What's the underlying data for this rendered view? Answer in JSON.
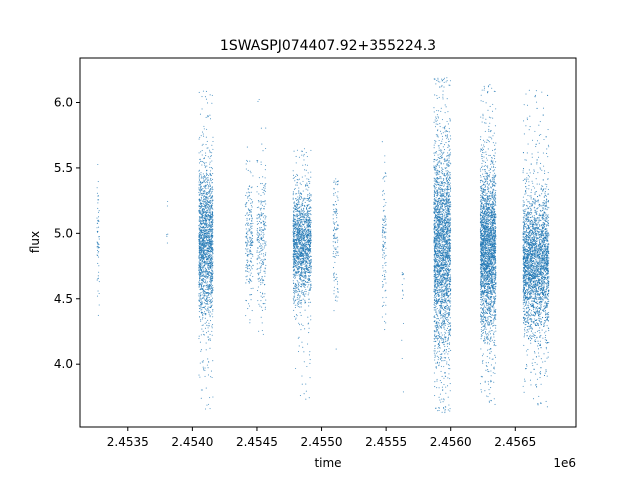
{
  "chart_data": {
    "type": "scatter",
    "title": "1SWASPJ074407.92+355224.3",
    "xlabel": "time",
    "ylabel": "flux",
    "x_offset_label": "1e6",
    "xlim": [
      2453130,
      2456970
    ],
    "ylim": [
      3.52,
      6.34
    ],
    "x_ticks": [
      2453500,
      2454000,
      2454500,
      2455000,
      2455500,
      2456000,
      2456500
    ],
    "x_tick_labels": [
      "2.4535",
      "2.4540",
      "2.4545",
      "2.4550",
      "2.4555",
      "2.4560",
      "2.4565"
    ],
    "y_ticks": [
      4.0,
      4.5,
      5.0,
      5.5,
      6.0
    ],
    "y_tick_labels": [
      "4.0",
      "4.5",
      "5.0",
      "5.5",
      "6.0"
    ],
    "grid": false,
    "legend": "none",
    "marker_color": "#1f77b4",
    "clusters": [
      {
        "x_start": 2453260,
        "x_end": 2453280,
        "center": 4.95,
        "spread": 0.22,
        "ymin": 4.35,
        "ymax": 5.58,
        "n": 60
      },
      {
        "x_start": 2453800,
        "x_end": 2453810,
        "center": 4.95,
        "spread": 0.3,
        "ymin": 4.6,
        "ymax": 5.4,
        "n": 6
      },
      {
        "x_start": 2454050,
        "x_end": 2454160,
        "center": 4.92,
        "spread": 0.28,
        "ymin": 3.65,
        "ymax": 6.12,
        "n": 1800
      },
      {
        "x_start": 2454410,
        "x_end": 2454470,
        "center": 4.95,
        "spread": 0.22,
        "ymin": 4.3,
        "ymax": 5.7,
        "n": 220
      },
      {
        "x_start": 2454500,
        "x_end": 2454570,
        "center": 4.92,
        "spread": 0.25,
        "ymin": 4.2,
        "ymax": 6.05,
        "n": 260
      },
      {
        "x_start": 2454780,
        "x_end": 2454920,
        "center": 4.92,
        "spread": 0.2,
        "ymin": 3.7,
        "ymax": 5.65,
        "n": 1600
      },
      {
        "x_start": 2455090,
        "x_end": 2455130,
        "center": 4.95,
        "spread": 0.25,
        "ymin": 4.1,
        "ymax": 5.42,
        "n": 120
      },
      {
        "x_start": 2455470,
        "x_end": 2455500,
        "center": 4.9,
        "spread": 0.28,
        "ymin": 3.9,
        "ymax": 5.72,
        "n": 110
      },
      {
        "x_start": 2455620,
        "x_end": 2455640,
        "center": 4.6,
        "spread": 0.3,
        "ymin": 3.75,
        "ymax": 4.7,
        "n": 15
      },
      {
        "x_start": 2455870,
        "x_end": 2456000,
        "center": 4.9,
        "spread": 0.38,
        "ymin": 3.63,
        "ymax": 6.2,
        "n": 2600
      },
      {
        "x_start": 2456230,
        "x_end": 2456350,
        "center": 4.88,
        "spread": 0.3,
        "ymin": 3.68,
        "ymax": 6.15,
        "n": 2600
      },
      {
        "x_start": 2456560,
        "x_end": 2456760,
        "center": 4.78,
        "spread": 0.25,
        "ymin": 3.66,
        "ymax": 6.12,
        "n": 3000
      }
    ]
  }
}
